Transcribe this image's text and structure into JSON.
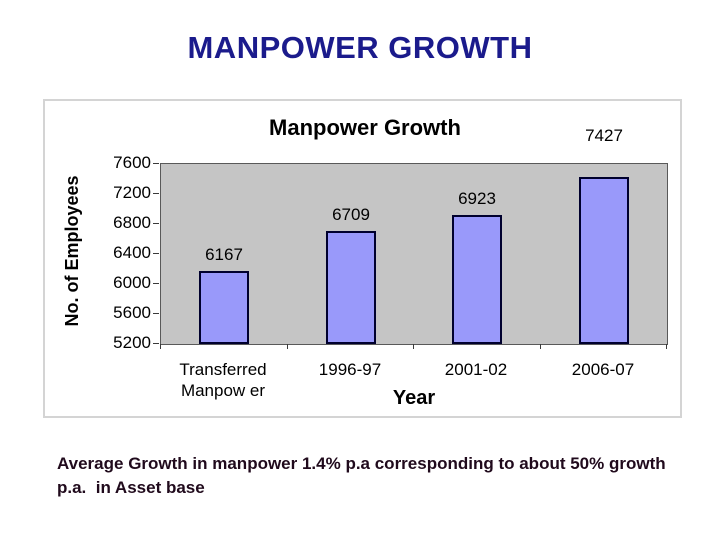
{
  "page": {
    "title": "MANPOWER GROWTH",
    "title_color": "#1b1b8c",
    "caption": "Average Growth in manpower 1.4% p.a corresponding to about 50% growth\np.a.  in Asset base"
  },
  "chart_data": {
    "type": "bar",
    "title": "Manpower Growth",
    "categories": [
      "Transferred\nManpow er",
      "1996-97",
      "2001-02",
      "2006-07"
    ],
    "values": [
      6167,
      6709,
      6923,
      7427
    ],
    "data_labels": [
      "6167",
      "6709",
      "6923",
      "7427"
    ],
    "xlabel": "Year",
    "ylabel": "No. of Employees",
    "ylim": [
      5200,
      7600
    ],
    "yticks": [
      5200,
      5600,
      6000,
      6400,
      6800,
      7200,
      7600
    ],
    "grid": "off",
    "legend": "none",
    "colors": {
      "bar_fill": "#9999fa",
      "bar_border": "#00002e",
      "plot_background": "#c5c5c5",
      "text": "#000000"
    }
  }
}
